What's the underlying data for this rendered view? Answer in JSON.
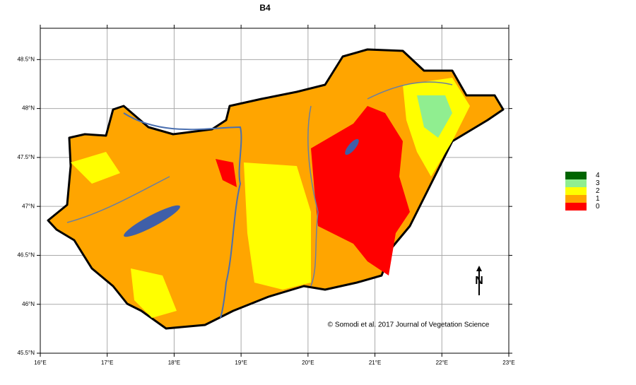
{
  "map": {
    "title": "B4",
    "xlim": [
      16,
      23
    ],
    "ylim": [
      45.5,
      48.82
    ],
    "xticks": [
      {
        "value": 16,
        "label": "16°E"
      },
      {
        "value": 17,
        "label": "17°E"
      },
      {
        "value": 18,
        "label": "18°E"
      },
      {
        "value": 19,
        "label": "19°E"
      },
      {
        "value": 20,
        "label": "20°E"
      },
      {
        "value": 21,
        "label": "21°E"
      },
      {
        "value": 22,
        "label": "22°E"
      },
      {
        "value": 23,
        "label": "23°E"
      }
    ],
    "yticks": [
      {
        "value": 45.5,
        "label": "45.5°N"
      },
      {
        "value": 46,
        "label": "46°N"
      },
      {
        "value": 46.5,
        "label": "46.5°N"
      },
      {
        "value": 47,
        "label": "47°N"
      },
      {
        "value": 47.5,
        "label": "47.5°N"
      },
      {
        "value": 48,
        "label": "48°N"
      },
      {
        "value": 48.5,
        "label": "48.5°N"
      }
    ],
    "grid": true,
    "legend": [
      {
        "label": "4",
        "color": "#006400"
      },
      {
        "label": "3",
        "color": "#90ee90"
      },
      {
        "label": "2",
        "color": "#ffff00"
      },
      {
        "label": "1",
        "color": "#ffa500"
      },
      {
        "label": "0",
        "color": "#ff0000"
      }
    ],
    "credit": "© Somodi et al. 2017 Journal of Vegetation Science",
    "north": "N"
  }
}
